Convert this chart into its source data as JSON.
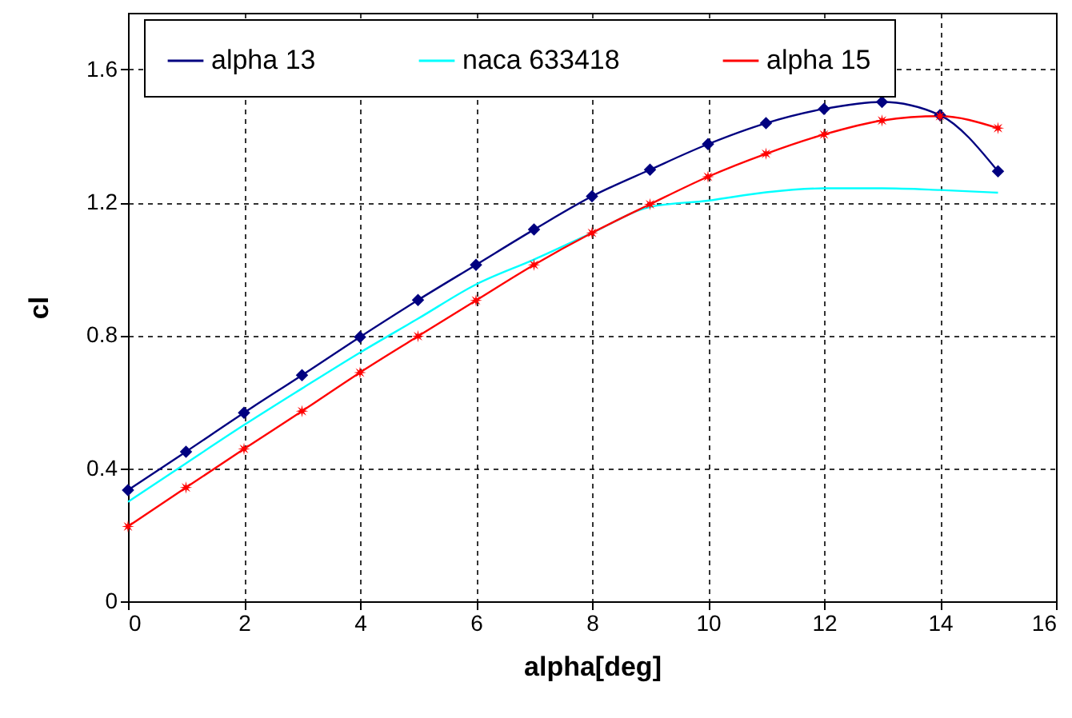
{
  "chart_data": {
    "type": "line",
    "xlabel": "alpha[deg]",
    "ylabel": "cl",
    "x": [
      0,
      1,
      2,
      3,
      4,
      5,
      6,
      7,
      8,
      9,
      10,
      11,
      12,
      13,
      14,
      15
    ],
    "series": [
      {
        "name": "alpha 13",
        "color": "#000080",
        "marker": "diamond",
        "values": [
          0.334,
          0.45,
          0.567,
          0.68,
          0.795,
          0.906,
          1.012,
          1.118,
          1.218,
          1.298,
          1.375,
          1.438,
          1.481,
          1.502,
          1.462,
          1.293
        ]
      },
      {
        "name": "naca 633418",
        "color": "#00ffff",
        "marker": "none",
        "values": [
          0.299,
          0.415,
          0.53,
          0.64,
          0.748,
          0.85,
          0.953,
          1.028,
          1.108,
          1.186,
          1.205,
          1.23,
          1.242,
          1.242,
          1.237,
          1.229
        ]
      },
      {
        "name": "alpha 15",
        "color": "#ff0000",
        "marker": "star",
        "values": [
          0.225,
          0.342,
          0.458,
          0.572,
          0.688,
          0.797,
          0.905,
          1.012,
          1.108,
          1.194,
          1.277,
          1.346,
          1.404,
          1.446,
          1.459,
          1.423
        ]
      }
    ],
    "xlim": [
      0,
      16
    ],
    "xticks": [
      0,
      2,
      4,
      6,
      8,
      10,
      12,
      14,
      16
    ],
    "ylim": [
      0,
      1.77
    ],
    "yticks": [
      0,
      0.4,
      0.8,
      1.2,
      1.6
    ],
    "grid": true,
    "legend": "top"
  }
}
